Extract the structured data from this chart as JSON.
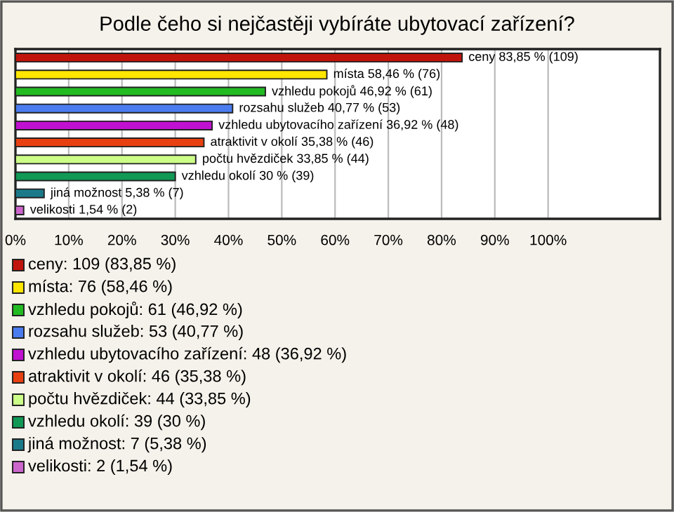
{
  "chart_data": {
    "type": "bar",
    "orientation": "horizontal",
    "title": "Podle čeho si nejčastěji vybíráte ubytovací zařízení?",
    "categories": [
      "ceny",
      "místa",
      "vzhledu pokojů",
      "rozsahu služeb",
      "vzhledu ubytovacího zařízení",
      "atraktivit v okolí",
      "počtu hvězdiček",
      "vzhledu okolí",
      "jiná možnost",
      "velikosti"
    ],
    "values": [
      83.85,
      58.46,
      46.92,
      40.77,
      36.92,
      35.38,
      33.85,
      30,
      5.38,
      1.54
    ],
    "value_labels": [
      "83,85 % (109)",
      "58,46 % (76)",
      "46,92 % (61)",
      "40,77 % (53)",
      "36,92 % (48)",
      "35,38 % (46)",
      "33,85 % (44)",
      "30 % (39)",
      "5,38 % (7)",
      "1,54 % (2)"
    ],
    "colors": [
      "#c0140c",
      "#ffe600",
      "#22bb22",
      "#4a7cf0",
      "#c010d0",
      "#e84010",
      "#ccff88",
      "#119955",
      "#1a7a8a",
      "#cc66cc"
    ],
    "xlim": [
      0,
      121
    ],
    "xticks": [
      {
        "value": 0,
        "label": "0%"
      },
      {
        "value": 10,
        "label": "10%"
      },
      {
        "value": 20,
        "label": "20%"
      },
      {
        "value": 30,
        "label": "30%"
      },
      {
        "value": 40,
        "label": "40%"
      },
      {
        "value": 50,
        "label": "50%"
      },
      {
        "value": 60,
        "label": "60%"
      },
      {
        "value": 70,
        "label": "70%"
      },
      {
        "value": 80,
        "label": "80%"
      },
      {
        "value": 90,
        "label": "90%"
      },
      {
        "value": 100,
        "label": "100%"
      }
    ],
    "grid": "x",
    "tick_labels": "x",
    "annotations": [
      "ceny: 109 (83,85 %)",
      "místa: 76 (58,46 %)",
      "vzhledu pokojů: 61 (46,92 %)",
      "rozsahu služeb: 53 (40,77 %)",
      "vzhledu ubytovacího zařízení: 48 (36,92 %)",
      "atraktivit v okolí: 46 (35,38 %)",
      "počtu hvězdiček: 44 (33,85 %)",
      "vzhledu okolí: 39 (30 %)",
      "jiná možnost: 7 (5,38 %)",
      "velikosti: 2 (1,54 %)"
    ]
  }
}
